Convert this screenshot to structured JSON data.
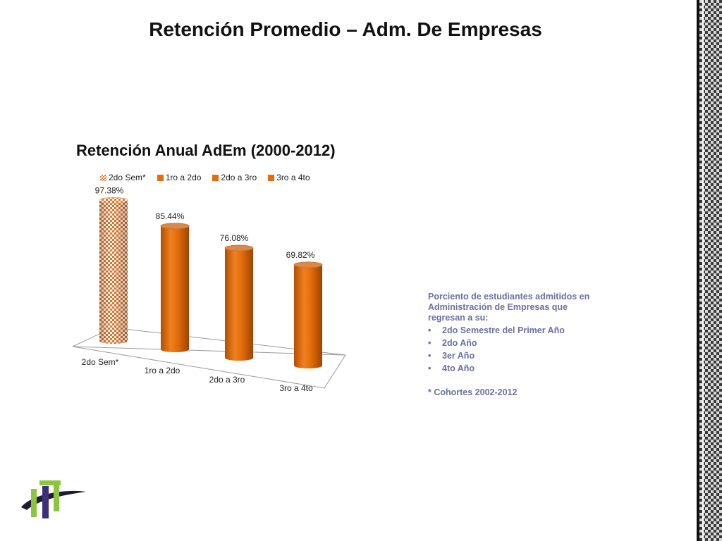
{
  "slide": {
    "title": "Retención Promedio – Adm. De Empresas"
  },
  "chart_data": {
    "type": "bar",
    "title": "Retención Anual AdEm (2000-2012)",
    "categories": [
      "2do Sem*",
      "1ro a 2do",
      "2do a 3ro",
      "3ro a 4to"
    ],
    "values": [
      97.38,
      85.44,
      76.08,
      69.82
    ],
    "data_labels": [
      "97.38%",
      "85.44%",
      "76.08%",
      "69.82%"
    ],
    "legend": {
      "position": "top",
      "entries": [
        "2do Sem*",
        "1ro a 2do",
        "2do a 3ro",
        "3ro a 4to"
      ]
    },
    "colors": {
      "primary": "#e46c0a",
      "patterned_first": "#e87722"
    },
    "ylim": [
      0,
      100
    ],
    "grid": false,
    "xlabel": "",
    "ylabel": ""
  },
  "side_text": {
    "intro": "Porciento de estudiantes admitidos en Administración de Empresas que regresan a su:",
    "items": [
      "2do Semestre del Primer Año",
      "2do Año",
      "3er Año",
      "4to Año"
    ],
    "note": "* Cohortes 2002-2012"
  }
}
